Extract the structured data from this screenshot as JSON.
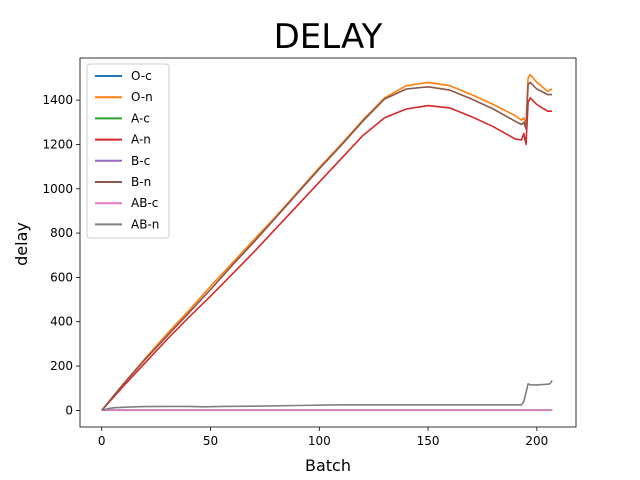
{
  "chart_data": {
    "type": "line",
    "title": "DELAY",
    "xlabel": "Batch",
    "ylabel": "delay",
    "xlim": [
      -10,
      218
    ],
    "ylim": [
      -75,
      1590
    ],
    "xticks": [
      0,
      50,
      100,
      150,
      200
    ],
    "yticks": [
      0,
      200,
      400,
      600,
      800,
      1000,
      1200,
      1400
    ],
    "grid": false,
    "legend_position": "upper-left",
    "series": [
      {
        "name": "O-c",
        "color": "#1f77b4",
        "x": [
          0,
          10,
          20,
          30,
          40,
          47,
          60,
          80,
          100,
          120,
          150,
          180,
          194,
          195,
          197,
          200,
          207
        ],
        "y": [
          1,
          1,
          1,
          1,
          1,
          1,
          1,
          1,
          1,
          1,
          1,
          1,
          1,
          1,
          1,
          1,
          1
        ]
      },
      {
        "name": "O-n",
        "color": "#ff7f0e",
        "x": [
          0,
          10,
          20,
          30,
          40,
          50,
          60,
          70,
          80,
          90,
          100,
          110,
          120,
          130,
          140,
          150,
          160,
          170,
          180,
          190,
          193,
          194,
          195,
          196,
          197,
          200,
          205,
          207
        ],
        "y": [
          0,
          120,
          235,
          345,
          450,
          560,
          665,
          770,
          875,
          985,
          1095,
          1200,
          1310,
          1410,
          1465,
          1480,
          1465,
          1425,
          1380,
          1330,
          1310,
          1320,
          1290,
          1500,
          1515,
          1480,
          1440,
          1450
        ]
      },
      {
        "name": "A-c",
        "color": "#2ca02c",
        "x": [
          0,
          10,
          20,
          30,
          40,
          47,
          60,
          80,
          100,
          120,
          150,
          180,
          194,
          195,
          197,
          200,
          207
        ],
        "y": [
          1,
          1,
          1,
          1,
          1,
          1,
          1,
          1,
          1,
          1,
          1,
          1,
          1,
          1,
          1,
          1,
          1
        ]
      },
      {
        "name": "A-n",
        "color": "#d62728",
        "x": [
          0,
          10,
          20,
          30,
          40,
          50,
          60,
          70,
          80,
          90,
          100,
          110,
          120,
          130,
          140,
          150,
          160,
          170,
          180,
          190,
          193,
          194,
          195,
          196,
          197,
          200,
          205,
          207
        ],
        "y": [
          0,
          110,
          215,
          320,
          420,
          515,
          615,
          715,
          820,
          925,
          1030,
          1135,
          1240,
          1320,
          1360,
          1375,
          1365,
          1325,
          1280,
          1225,
          1220,
          1250,
          1200,
          1390,
          1410,
          1380,
          1350,
          1350
        ]
      },
      {
        "name": "B-c",
        "color": "#9467bd",
        "x": [
          0,
          10,
          20,
          30,
          40,
          47,
          60,
          80,
          100,
          120,
          150,
          180,
          194,
          195,
          197,
          200,
          207
        ],
        "y": [
          1,
          1,
          1,
          1,
          1,
          1,
          1,
          1,
          1,
          1,
          1,
          1,
          1,
          1,
          1,
          1,
          1
        ]
      },
      {
        "name": "B-n",
        "color": "#8c564b",
        "x": [
          0,
          10,
          20,
          30,
          40,
          50,
          60,
          70,
          80,
          90,
          100,
          110,
          120,
          130,
          140,
          150,
          160,
          170,
          180,
          190,
          193,
          194,
          195,
          196,
          197,
          200,
          205,
          207
        ],
        "y": [
          0,
          120,
          230,
          335,
          440,
          545,
          655,
          760,
          870,
          980,
          1090,
          1195,
          1305,
          1405,
          1450,
          1460,
          1445,
          1405,
          1360,
          1305,
          1290,
          1300,
          1270,
          1470,
          1480,
          1450,
          1425,
          1425
        ]
      },
      {
        "name": "AB-c",
        "color": "#e377c2",
        "x": [
          0,
          10,
          20,
          30,
          40,
          47,
          60,
          80,
          100,
          120,
          150,
          180,
          194,
          195,
          197,
          200,
          207
        ],
        "y": [
          1,
          1,
          1,
          1,
          1,
          1,
          1,
          1,
          1,
          1,
          1,
          1,
          1,
          1,
          1,
          1,
          1
        ]
      },
      {
        "name": "AB-n",
        "color": "#7f7f7f",
        "x": [
          0,
          3,
          6,
          10,
          15,
          20,
          30,
          40,
          47,
          55,
          70,
          90,
          110,
          130,
          150,
          170,
          185,
          193,
          194,
          195,
          196,
          197,
          200,
          205,
          206,
          207
        ],
        "y": [
          0,
          8,
          12,
          14,
          16,
          17,
          18,
          18,
          16,
          18,
          19,
          22,
          25,
          25,
          25,
          25,
          25,
          25,
          40,
          80,
          120,
          115,
          115,
          118,
          120,
          135
        ]
      }
    ]
  }
}
